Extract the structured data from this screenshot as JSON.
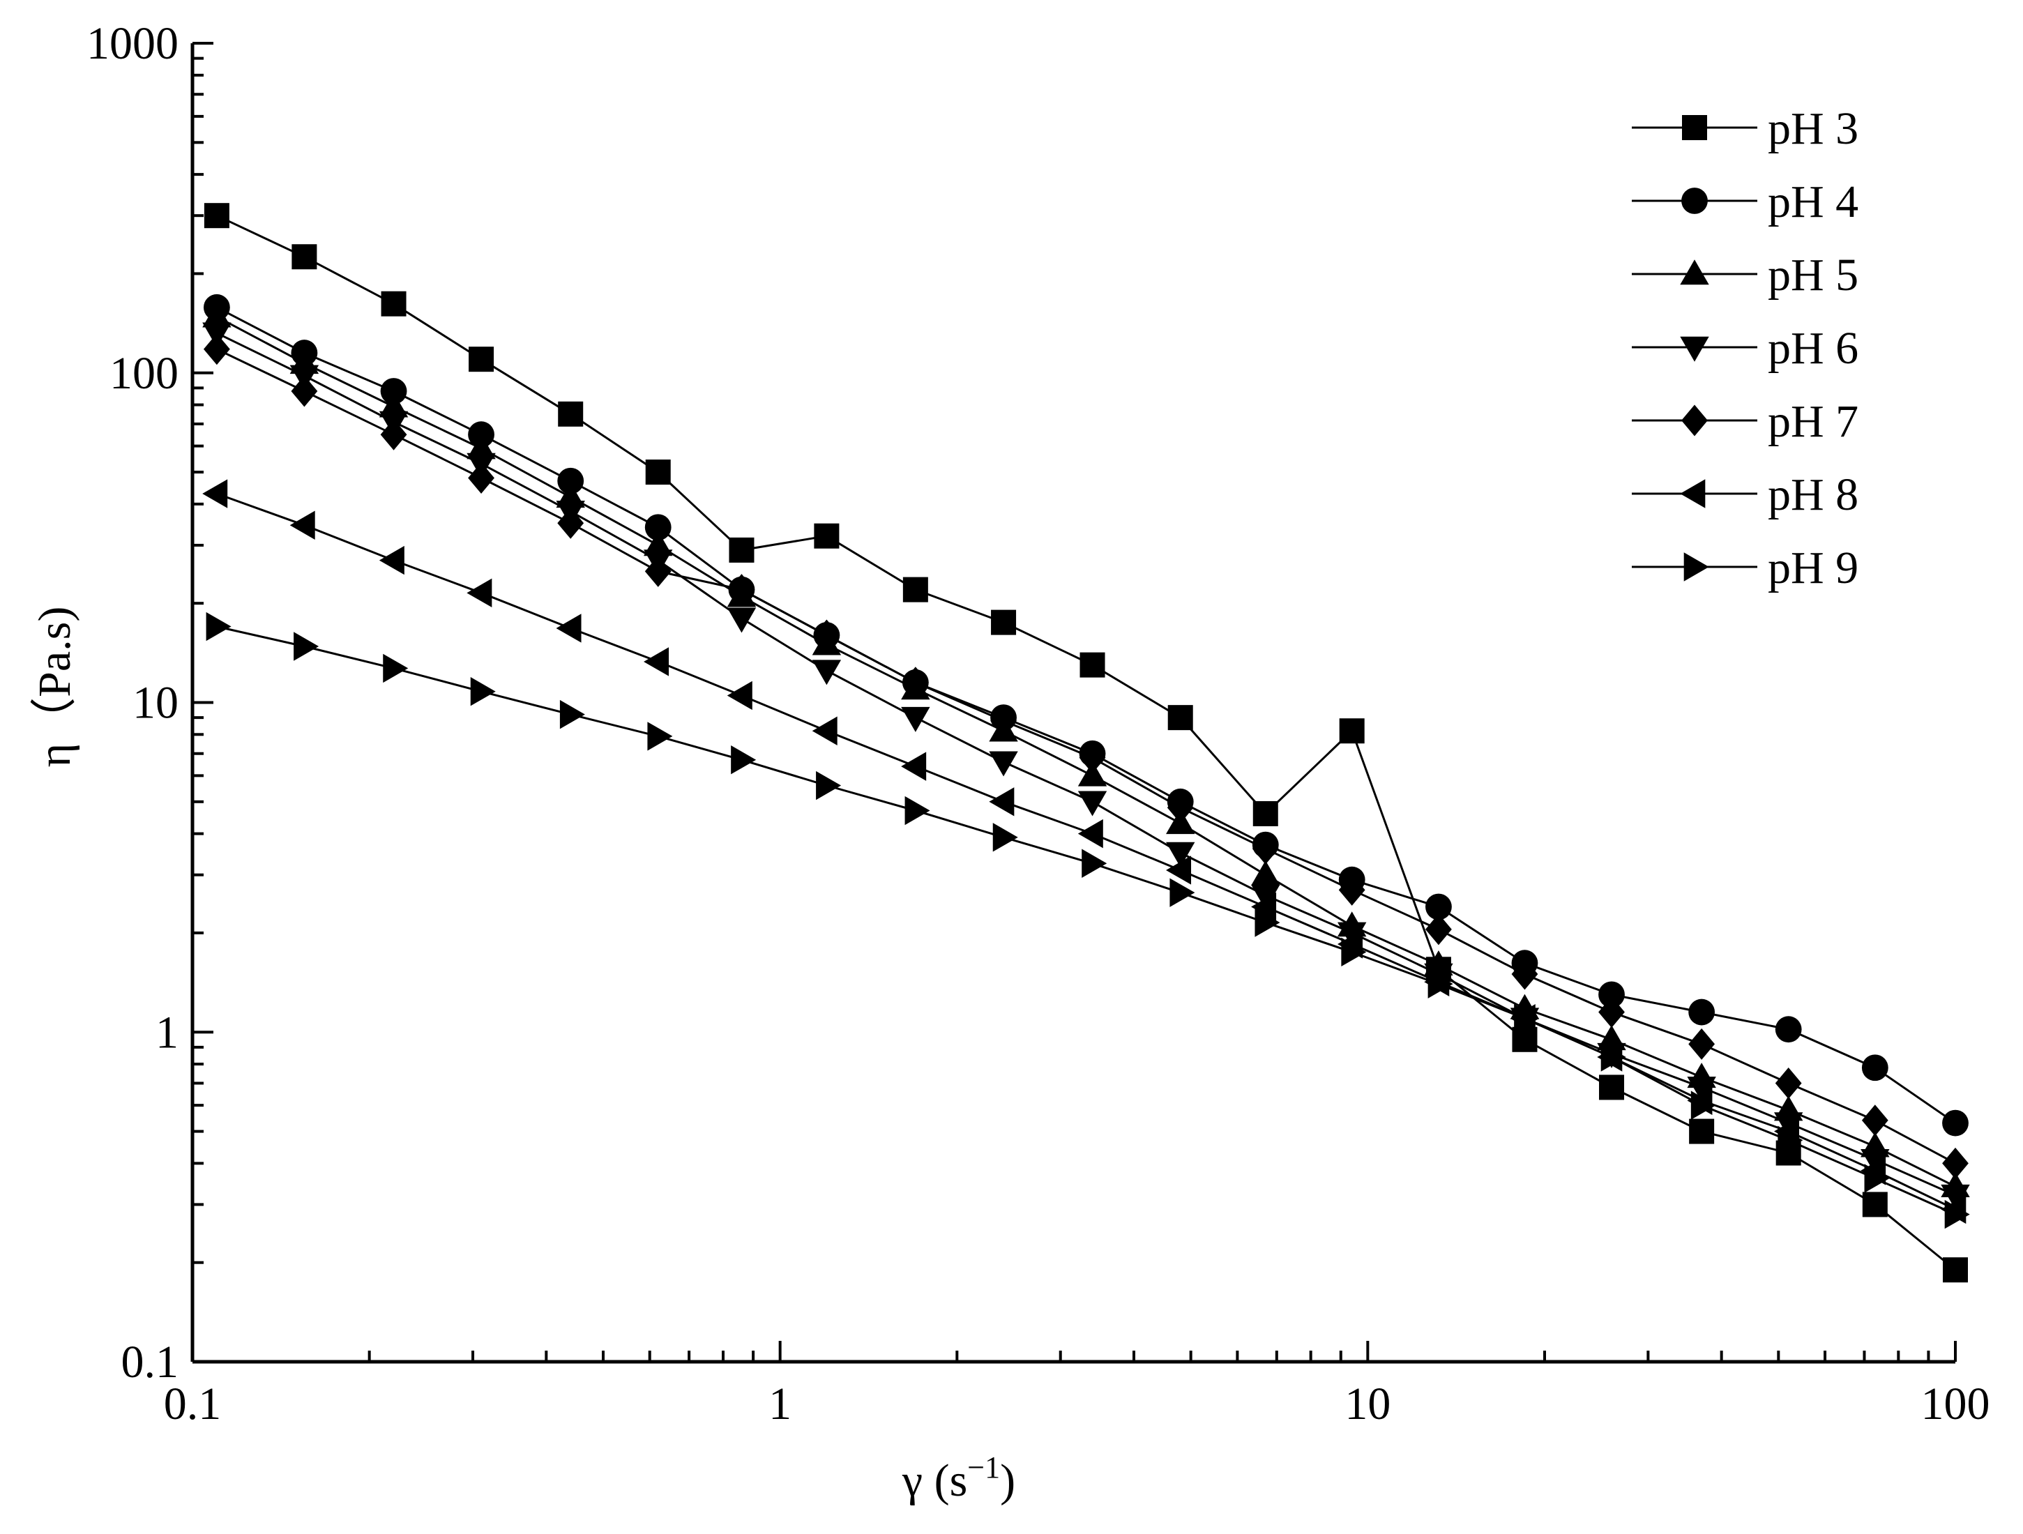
{
  "chart_data": {
    "type": "line",
    "xlabel": "γ (s",
    "xlabel_sup": "−1",
    "xlabel_close": ")",
    "ylabel": "η（Pa.s)",
    "x_scale": "log",
    "y_scale": "log",
    "xlim": [
      0.1,
      100
    ],
    "ylim": [
      0.1,
      1000
    ],
    "x_ticks": [
      "0.1",
      "1",
      "10",
      "100"
    ],
    "y_ticks": [
      "0.1",
      "1",
      "10",
      "100",
      "1000"
    ],
    "grid": false,
    "legend_position": "top-right",
    "x": [
      0.11,
      0.155,
      0.22,
      0.31,
      0.44,
      0.62,
      0.86,
      1.2,
      1.7,
      2.4,
      3.4,
      4.8,
      6.7,
      9.4,
      13.2,
      18.5,
      26,
      37,
      52,
      73,
      100
    ],
    "series": [
      {
        "name": "pH 3",
        "marker": "square",
        "values": [
          300,
          225,
          162,
          110,
          75,
          50,
          29,
          32,
          22,
          17.5,
          13,
          9,
          4.6,
          8.2,
          1.55,
          0.95,
          0.68,
          0.5,
          0.43,
          0.3,
          0.19
        ]
      },
      {
        "name": "pH 4",
        "marker": "circle",
        "values": [
          158,
          115,
          88,
          65,
          47,
          34,
          22,
          16,
          11.5,
          9,
          7,
          5,
          3.7,
          2.9,
          2.4,
          1.62,
          1.3,
          1.15,
          1.02,
          0.78,
          0.53
        ]
      },
      {
        "name": "pH 5",
        "marker": "triangle-up",
        "values": [
          148,
          107,
          79,
          59,
          42,
          30,
          21,
          15,
          11,
          8.2,
          6,
          4.3,
          3,
          2.1,
          1.6,
          1.18,
          0.95,
          0.73,
          0.58,
          0.45,
          0.34
        ]
      },
      {
        "name": "pH 6",
        "marker": "triangle-down",
        "values": [
          132,
          98,
          71,
          53,
          38,
          27,
          18,
          12.5,
          9,
          6.6,
          5,
          3.5,
          2.6,
          2,
          1.5,
          1.1,
          0.86,
          0.68,
          0.53,
          0.41,
          0.32
        ]
      },
      {
        "name": "pH 7",
        "marker": "diamond",
        "values": [
          118,
          88,
          65,
          48,
          35,
          25,
          22,
          16,
          11.5,
          8.8,
          6.8,
          4.8,
          3.6,
          2.7,
          2.05,
          1.5,
          1.15,
          0.92,
          0.7,
          0.54,
          0.4
        ]
      },
      {
        "name": "pH 8",
        "marker": "triangle-left",
        "values": [
          43,
          34.5,
          27,
          21.5,
          16.8,
          13.3,
          10.5,
          8.2,
          6.4,
          5,
          4,
          3.1,
          2.4,
          1.85,
          1.42,
          1.1,
          0.84,
          0.62,
          0.5,
          0.38,
          0.29
        ]
      },
      {
        "name": "pH 9",
        "marker": "triangle-right",
        "values": [
          17,
          14.8,
          12.7,
          10.8,
          9.2,
          7.9,
          6.7,
          5.6,
          4.7,
          3.9,
          3.25,
          2.65,
          2.15,
          1.75,
          1.4,
          1.1,
          0.84,
          0.6,
          0.47,
          0.36,
          0.28
        ]
      }
    ]
  }
}
